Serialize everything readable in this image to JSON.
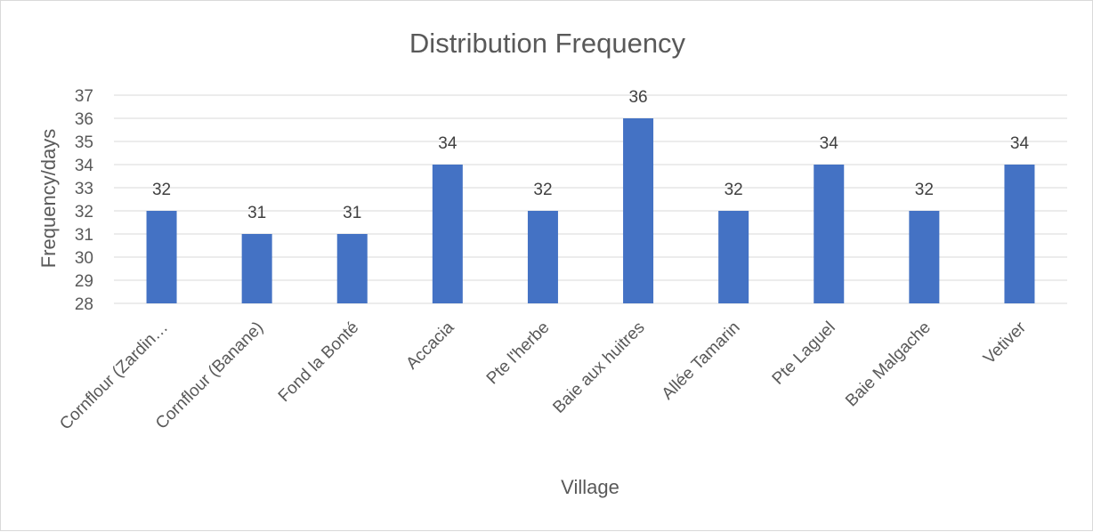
{
  "chart_data": {
    "type": "bar",
    "title": "Distribution Frequency",
    "xlabel": "Village",
    "ylabel": "Frequency/days",
    "categories": [
      "Cornflour (Zardin…",
      "Cornflour (Banane)",
      "Fond la Bonté",
      "Accacia",
      "Pte l'herbe",
      "Baie aux huitres",
      "Allée Tamarin",
      "Pte Laguel",
      "Baie Malgache",
      "Vetiver"
    ],
    "values": [
      32,
      31,
      31,
      34,
      32,
      36,
      32,
      34,
      32,
      34
    ],
    "data_labels": [
      "32",
      "31",
      "31",
      "34",
      "32",
      "36",
      "32",
      "34",
      "32",
      "34"
    ],
    "ylim": [
      28,
      37
    ],
    "yticks": [
      "28",
      "29",
      "30",
      "31",
      "32",
      "33",
      "34",
      "35",
      "36",
      "37"
    ],
    "grid": true,
    "legend": "none",
    "bar_color": "#4472C4"
  }
}
